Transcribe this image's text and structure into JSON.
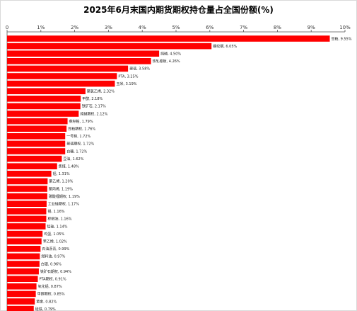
{
  "chart_data": {
    "type": "bar",
    "orientation": "horizontal",
    "title": "2025年6月末国内期货期权持仓量占全国份额(%)",
    "xlabel": "",
    "ylabel": "",
    "xlim": [
      0,
      10
    ],
    "x_ticks": [
      "0",
      "1%",
      "2%",
      "3%",
      "4%",
      "5%",
      "6%",
      "7%",
      "8%",
      "9%",
      "10%"
    ],
    "x_axis_position": "top",
    "grid": false,
    "legend": "none",
    "bar_color": "#ff0000",
    "categories": [
      "豆粕",
      "螺纹钢",
      "纯碱",
      "热轧卷板",
      "玻璃",
      "PTA",
      "玉米",
      "聚氯乙烯",
      "甲醇",
      "铁矿石",
      "纯碱期权",
      "菜籽粕",
      "豆粕期权",
      "一号棉",
      "玻璃期权",
      "白糖",
      "豆油",
      "焦煤",
      "铝",
      "聚乙烯",
      "聚丙烯",
      "碳酸锂期权",
      "工业硅期权",
      "锡",
      "棕榈油",
      "锰硅",
      "鸡蛋",
      "苯乙烯",
      "石油沥青",
      "燃料油",
      "白银",
      "铁矿石期权",
      "PTA期权",
      "氧化铝",
      "甲醇期权",
      "黄金",
      "硅铁"
    ],
    "values": [
      9.55,
      6.05,
      4.5,
      4.26,
      3.58,
      3.25,
      3.19,
      2.32,
      2.18,
      2.17,
      2.12,
      1.79,
      1.76,
      1.72,
      1.72,
      1.72,
      1.62,
      1.48,
      1.31,
      1.2,
      1.19,
      1.19,
      1.17,
      1.16,
      1.16,
      1.14,
      1.05,
      1.02,
      0.99,
      0.97,
      0.96,
      0.94,
      0.91,
      0.87,
      0.85,
      0.82,
      0.79
    ],
    "data_labels": [
      "豆粕, 9.55%",
      "螺纹钢, 6.05%",
      "纯碱, 4.50%",
      "热轧卷板, 4.26%",
      "玻璃, 3.58%",
      "PTA, 3.25%",
      "玉米, 3.19%",
      "聚氯乙烯, 2.32%",
      "甲醇, 2.18%",
      "铁矿石, 2.17%",
      "纯碱期权, 2.12%",
      "菜籽粕, 1.79%",
      "豆粕期权, 1.76%",
      "一号棉, 1.72%",
      "玻璃期权, 1.72%",
      "白糖, 1.72%",
      "豆油, 1.62%",
      "焦煤, 1.48%",
      "铝, 1.31%",
      "聚乙烯, 1.20%",
      "聚丙烯, 1.19%",
      "碳酸锂期权, 1.19%",
      "工业硅期权, 1.17%",
      "锡, 1.16%",
      "棕榈油, 1.16%",
      "锰硅, 1.14%",
      "鸡蛋, 1.05%",
      "苯乙烯, 1.02%",
      "石油沥青, 0.99%",
      "燃料油, 0.97%",
      "白银, 0.96%",
      "铁矿石期权, 0.94%",
      "PTA期权, 0.91%",
      "氧化铝, 0.87%",
      "甲醇期权, 0.85%",
      "黄金, 0.82%",
      "硅铁, 0.79%"
    ]
  }
}
